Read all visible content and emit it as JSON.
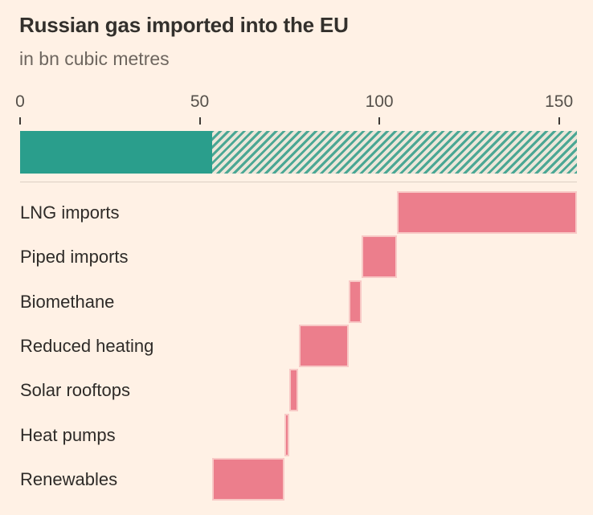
{
  "page": {
    "background": "#FFF1E5"
  },
  "chart_data": {
    "type": "bar",
    "subtype": "waterfall-with-total-bullet-bar",
    "title": "Russian gas imported into the EU",
    "subtitle": "in bn cubic metres",
    "unit": "bn cubic metres",
    "grid": false,
    "legend_position": "none",
    "axis": {
      "min": 0,
      "max": 155,
      "ticks": [
        0,
        50,
        100,
        150
      ]
    },
    "total_bar": {
      "total": 155,
      "solid_value": 53.5,
      "solid_color": "#2A9E8C",
      "hatch_color": "#4BA794",
      "hatch_bg": "#ECE6D9"
    },
    "bar_color": "#EC7E8C",
    "segments": [
      {
        "label": "LNG imports",
        "start": 105,
        "end": 155,
        "value": 50
      },
      {
        "label": "Piped imports",
        "start": 95,
        "end": 105,
        "value": 10
      },
      {
        "label": "Biomethane",
        "start": 91.5,
        "end": 95,
        "value": 3.5
      },
      {
        "label": "Reduced heating",
        "start": 77.5,
        "end": 91.5,
        "value": 14
      },
      {
        "label": "Solar rooftops",
        "start": 75,
        "end": 77.5,
        "value": 2.5
      },
      {
        "label": "Heat pumps",
        "start": 73.5,
        "end": 75,
        "value": 1.5
      },
      {
        "label": "Renewables",
        "start": 53.5,
        "end": 73.5,
        "value": 20
      }
    ]
  }
}
